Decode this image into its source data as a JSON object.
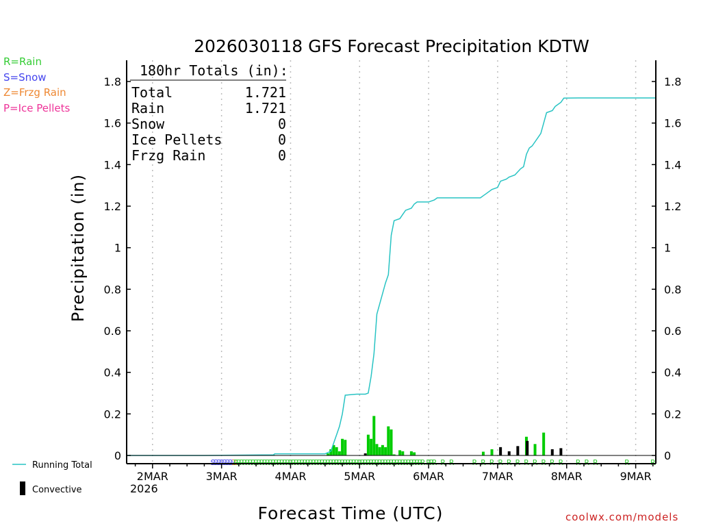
{
  "chart_data": {
    "type": "line",
    "title": "2026030118 GFS Forecast Precipitation KDTW",
    "xlabel": "Forecast Time (UTC)",
    "ylabel": "Precipitation (in)",
    "ylim": [
      0,
      1.85
    ],
    "xlim_hours": [
      -3,
      181
    ],
    "yticks": [
      0,
      0.2,
      0.4,
      0.6,
      0.8,
      1,
      1.2,
      1.4,
      1.6,
      1.8
    ],
    "ytick_labels": [
      "0",
      "0.2",
      "0.4",
      "0.6",
      "0.8",
      "1",
      "1.2",
      "1.4",
      "1.6",
      "1.8"
    ],
    "x_tick_hours": [
      6,
      30,
      54,
      78,
      102,
      126,
      150,
      174
    ],
    "x_tick_labels": [
      "2MAR",
      "3MAR",
      "4MAR",
      "5MAR",
      "6MAR",
      "7MAR",
      "8MAR",
      "9MAR"
    ],
    "x_year_label": "2026",
    "totals": {
      "header": "180hr Totals (in):",
      "rows": [
        {
          "label": "Total",
          "value": "1.721"
        },
        {
          "label": "Rain",
          "value": "1.721"
        },
        {
          "label": "Snow",
          "value": "0"
        },
        {
          "label": "Ice Pellets",
          "value": "0"
        },
        {
          "label": "Frzg Rain",
          "value": "0"
        }
      ]
    },
    "series": [
      {
        "name": "Running Total",
        "color": "#27c3c3",
        "points": [
          [
            -3,
            0
          ],
          [
            24,
            0
          ],
          [
            48,
            0.003
          ],
          [
            48.5,
            0.008
          ],
          [
            66,
            0.008
          ],
          [
            68,
            0.02
          ],
          [
            69,
            0.06
          ],
          [
            70,
            0.1
          ],
          [
            71,
            0.14
          ],
          [
            72,
            0.2
          ],
          [
            73,
            0.29
          ],
          [
            77,
            0.295
          ],
          [
            80,
            0.295
          ],
          [
            81,
            0.3
          ],
          [
            82,
            0.38
          ],
          [
            83,
            0.49
          ],
          [
            84,
            0.68
          ],
          [
            85,
            0.73
          ],
          [
            86,
            0.78
          ],
          [
            87,
            0.83
          ],
          [
            88,
            0.87
          ],
          [
            89,
            1.06
          ],
          [
            90,
            1.13
          ],
          [
            92,
            1.14
          ],
          [
            93,
            1.16
          ],
          [
            94,
            1.18
          ],
          [
            96,
            1.19
          ],
          [
            97,
            1.21
          ],
          [
            98,
            1.22
          ],
          [
            102,
            1.22
          ],
          [
            104,
            1.23
          ],
          [
            105,
            1.24
          ],
          [
            120,
            1.24
          ],
          [
            121,
            1.25
          ],
          [
            122,
            1.26
          ],
          [
            124,
            1.28
          ],
          [
            126,
            1.29
          ],
          [
            127,
            1.32
          ],
          [
            129,
            1.33
          ],
          [
            130,
            1.34
          ],
          [
            132,
            1.35
          ],
          [
            134,
            1.38
          ],
          [
            135,
            1.39
          ],
          [
            136,
            1.45
          ],
          [
            137,
            1.48
          ],
          [
            138,
            1.49
          ],
          [
            139,
            1.51
          ],
          [
            140,
            1.53
          ],
          [
            141,
            1.55
          ],
          [
            142,
            1.6
          ],
          [
            143,
            1.65
          ],
          [
            145,
            1.66
          ],
          [
            146,
            1.68
          ],
          [
            147,
            1.69
          ],
          [
            148,
            1.7
          ],
          [
            149,
            1.72
          ],
          [
            154,
            1.721
          ],
          [
            181,
            1.721
          ]
        ]
      }
    ],
    "bars_label": "Convective",
    "bars": [
      {
        "hour": 48,
        "value": 0.003,
        "kind": "rain"
      },
      {
        "hour": 67,
        "value": 0.01,
        "kind": "rain"
      },
      {
        "hour": 68,
        "value": 0.03,
        "kind": "rain"
      },
      {
        "hour": 69,
        "value": 0.05,
        "kind": "rain"
      },
      {
        "hour": 70,
        "value": 0.04,
        "kind": "rain"
      },
      {
        "hour": 71,
        "value": 0.02,
        "kind": "rain"
      },
      {
        "hour": 72,
        "value": 0.08,
        "kind": "rain"
      },
      {
        "hour": 73,
        "value": 0.075,
        "kind": "rain"
      },
      {
        "hour": 80,
        "value": 0.01,
        "kind": "convective"
      },
      {
        "hour": 81,
        "value": 0.1,
        "kind": "rain"
      },
      {
        "hour": 82,
        "value": 0.08,
        "kind": "rain"
      },
      {
        "hour": 83,
        "value": 0.19,
        "kind": "rain"
      },
      {
        "hour": 84,
        "value": 0.055,
        "kind": "rain"
      },
      {
        "hour": 85,
        "value": 0.04,
        "kind": "rain"
      },
      {
        "hour": 86,
        "value": 0.05,
        "kind": "rain"
      },
      {
        "hour": 87,
        "value": 0.04,
        "kind": "rain"
      },
      {
        "hour": 88,
        "value": 0.14,
        "kind": "rain"
      },
      {
        "hour": 89,
        "value": 0.125,
        "kind": "rain"
      },
      {
        "hour": 90,
        "value": 0.005,
        "kind": "rain"
      },
      {
        "hour": 92,
        "value": 0.025,
        "kind": "rain"
      },
      {
        "hour": 93,
        "value": 0.02,
        "kind": "rain"
      },
      {
        "hour": 96,
        "value": 0.02,
        "kind": "rain"
      },
      {
        "hour": 97,
        "value": 0.015,
        "kind": "rain"
      },
      {
        "hour": 121,
        "value": 0.018,
        "kind": "rain"
      },
      {
        "hour": 124,
        "value": 0.03,
        "kind": "rain"
      },
      {
        "hour": 127,
        "value": 0.04,
        "kind": "convective"
      },
      {
        "hour": 130,
        "value": 0.02,
        "kind": "convective"
      },
      {
        "hour": 133,
        "value": 0.045,
        "kind": "convective"
      },
      {
        "hour": 136,
        "value": 0.09,
        "kind": "rain"
      },
      {
        "hour": 136.3,
        "value": 0.07,
        "kind": "convective"
      },
      {
        "hour": 139,
        "value": 0.055,
        "kind": "rain"
      },
      {
        "hour": 142,
        "value": 0.11,
        "kind": "rain"
      },
      {
        "hour": 145,
        "value": 0.03,
        "kind": "convective"
      },
      {
        "hour": 148,
        "value": 0.035,
        "kind": "convective"
      }
    ],
    "precip_type_markers": [
      {
        "start": 27,
        "end": 34,
        "step": 1,
        "char": "S"
      },
      {
        "start": 34.5,
        "end": 34.5,
        "step": 1,
        "char": "Z"
      },
      {
        "start": 35,
        "end": 70,
        "step": 1,
        "char": "R"
      },
      {
        "start": 70,
        "end": 100,
        "step": 1,
        "char": "R"
      },
      {
        "start": 102,
        "end": 104,
        "step": 1,
        "char": "R"
      },
      {
        "start": 107,
        "end": 110,
        "step": 3,
        "char": "R"
      },
      {
        "start": 118,
        "end": 148,
        "step": 3,
        "char": "R"
      },
      {
        "start": 154,
        "end": 160,
        "step": 3,
        "char": "R"
      },
      {
        "start": 171,
        "end": 171,
        "step": 1,
        "char": "R"
      },
      {
        "start": 180,
        "end": 180,
        "step": 1,
        "char": "R"
      }
    ],
    "legend": [
      {
        "label": "R=Rain",
        "color": "#33cc33"
      },
      {
        "label": "S=Snow",
        "color": "#4444ee"
      },
      {
        "label": "Z=Frzg Rain",
        "color": "#ee8833"
      },
      {
        "label": "P=Ice Pellets",
        "color": "#ee3399"
      }
    ],
    "colors": {
      "rain_bar": "#00cc00",
      "convective_bar": "#000000",
      "running_total": "#27c3c3",
      "grid": "#bbbbbb"
    },
    "credit": "coolwx.com/models"
  }
}
